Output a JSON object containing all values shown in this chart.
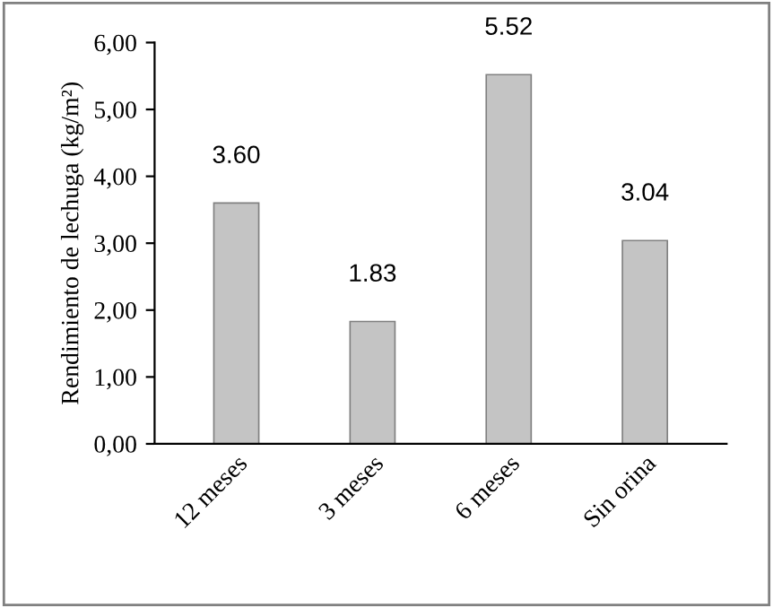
{
  "chart_data": {
    "type": "bar",
    "ylabel": "Rendimiento de lechuga (kg/m²)",
    "categories": [
      "12 meses",
      "3 meses",
      "6 meses",
      "Sin orina"
    ],
    "values": [
      3.6,
      1.83,
      5.52,
      3.04
    ],
    "value_labels": [
      "3.60",
      "1.83",
      "5.52",
      "3.04"
    ],
    "color": "#c4c4c4",
    "ylim": [
      0,
      6
    ],
    "yticks": [
      {
        "value": 0,
        "label": "0,00"
      },
      {
        "value": 1,
        "label": "1,00"
      },
      {
        "value": 2,
        "label": "2,00"
      },
      {
        "value": 3,
        "label": "3,00"
      },
      {
        "value": 4,
        "label": "4,00"
      },
      {
        "value": 5,
        "label": "5,00"
      },
      {
        "value": 6,
        "label": "6,00"
      }
    ],
    "grid": false,
    "legend": false
  }
}
